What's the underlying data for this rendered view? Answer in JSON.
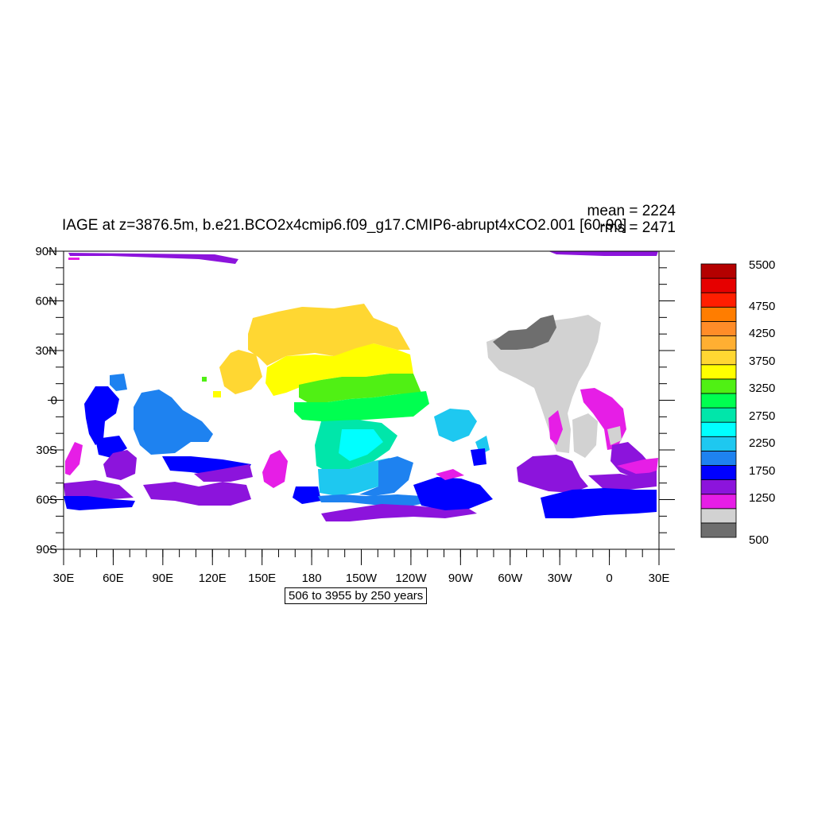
{
  "header": {
    "title": "IAGE at z=3876.5m, b.e21.BCO2x4cmip6.f09_g17.CMIP6-abrupt4xCO2.001 [60-90]",
    "mean_label": "mean = 2224",
    "rms_label": "rms = 2471"
  },
  "footer": {
    "contour_info": "506 to 3955 by 250 years"
  },
  "axes": {
    "lat_labels": [
      "90N",
      "60N",
      "30N",
      "0",
      "30S",
      "60S",
      "90S"
    ],
    "lon_labels": [
      "30E",
      "60E",
      "90E",
      "120E",
      "150E",
      "180",
      "150W",
      "120W",
      "90W",
      "60W",
      "30W",
      "0",
      "30E"
    ]
  },
  "colorbar": {
    "colors": [
      "#6e6e6e",
      "#d2d2d2",
      "#e61ee6",
      "#8c14dc",
      "#0000ff",
      "#1e82f0",
      "#1ec8f0",
      "#00ffff",
      "#00e6aa",
      "#00ff50",
      "#50f014",
      "#ffff00",
      "#ffd732",
      "#ffaf32",
      "#ff8c28",
      "#ff7d00",
      "#ff1e00",
      "#e60000",
      "#b40000"
    ],
    "labels": [
      "5500",
      "4750",
      "4250",
      "3750",
      "3250",
      "2750",
      "2250",
      "1750",
      "1250",
      "500"
    ]
  },
  "palette": {
    "dark_gray": "#6e6e6e",
    "light_gray": "#d2d2d2",
    "magenta": "#e61ee6",
    "purple": "#8c14dc",
    "blue": "#0000ff",
    "mid_blue": "#1e82f0",
    "sky": "#1ec8f0",
    "cyan": "#00ffff",
    "aqua": "#00e6aa",
    "green": "#00ff50",
    "lime": "#50f014",
    "yellow": "#ffff00",
    "gold": "#ffd732"
  }
}
